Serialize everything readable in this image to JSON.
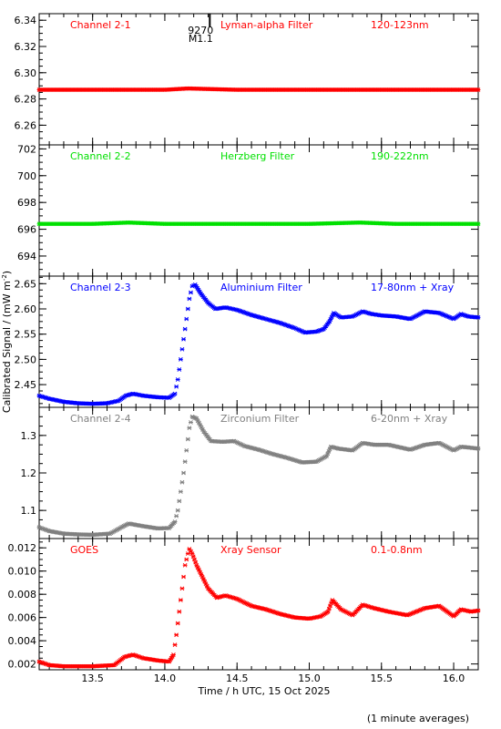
{
  "chart_data": {
    "type": "scatter",
    "ylabel": "Calibrated Signal / (mW m",
    "ylabel_sup": "-2",
    "ylabel_end": ")",
    "xlabel": "Time / h UTC, 15 Oct 2025",
    "footnote": "(1 minute averages)",
    "xlim": [
      13.13,
      16.17
    ],
    "x_ticks": [
      13.5,
      14.0,
      14.5,
      15.0,
      15.5,
      16.0
    ],
    "x_tick_labels": [
      "13.5",
      "14.0",
      "14.5",
      "15.0",
      "15.5",
      "16.0"
    ],
    "marker": {
      "label_top": "9270",
      "label_bottom": "M1.1",
      "x": 14.16
    },
    "panels": [
      {
        "channel": "Channel 2-1",
        "filter": "Lyman-alpha Filter",
        "band": "120-123nm",
        "color": "#ff0000",
        "ylim": [
          6.245,
          6.345
        ],
        "yticks": [
          6.26,
          6.28,
          6.3,
          6.32,
          6.34
        ],
        "ytick_labels": [
          "6.26",
          "6.28",
          "6.30",
          "6.32",
          "6.34"
        ],
        "series": [
          [
            13.13,
            6.287
          ],
          [
            13.5,
            6.287
          ],
          [
            14.0,
            6.287
          ],
          [
            14.16,
            6.288
          ],
          [
            14.5,
            6.287
          ],
          [
            15.0,
            6.287
          ],
          [
            15.5,
            6.287
          ],
          [
            16.17,
            6.287
          ]
        ]
      },
      {
        "channel": "Channel 2-2",
        "filter": "Herzberg Filter",
        "band": "190-222nm",
        "color": "#00e000",
        "ylim": [
          692.5,
          702.3
        ],
        "yticks": [
          694,
          696,
          698,
          700,
          702
        ],
        "ytick_labels": [
          "694",
          "696",
          "698",
          "700",
          "702"
        ],
        "series": [
          [
            13.13,
            696.4
          ],
          [
            13.5,
            696.4
          ],
          [
            13.75,
            696.5
          ],
          [
            14.0,
            696.4
          ],
          [
            14.5,
            696.4
          ],
          [
            15.0,
            696.4
          ],
          [
            15.35,
            696.5
          ],
          [
            15.6,
            696.4
          ],
          [
            16.17,
            696.4
          ]
        ]
      },
      {
        "channel": "Channel 2-3",
        "filter": "Aluminium Filter",
        "band": "17-80nm + Xray",
        "color": "#0000ff",
        "ylim": [
          2.405,
          2.665
        ],
        "yticks": [
          2.45,
          2.5,
          2.55,
          2.6,
          2.65
        ],
        "ytick_labels": [
          "2.45",
          "2.50",
          "2.55",
          "2.60",
          "2.65"
        ],
        "series": [
          [
            13.13,
            2.428
          ],
          [
            13.2,
            2.422
          ],
          [
            13.3,
            2.416
          ],
          [
            13.4,
            2.413
          ],
          [
            13.5,
            2.412
          ],
          [
            13.6,
            2.413
          ],
          [
            13.68,
            2.418
          ],
          [
            13.73,
            2.428
          ],
          [
            13.78,
            2.432
          ],
          [
            13.85,
            2.428
          ],
          [
            13.95,
            2.425
          ],
          [
            14.03,
            2.424
          ],
          [
            14.07,
            2.432
          ],
          [
            14.09,
            2.46
          ],
          [
            14.11,
            2.5
          ],
          [
            14.13,
            2.54
          ],
          [
            14.15,
            2.58
          ],
          [
            14.17,
            2.62
          ],
          [
            14.19,
            2.645
          ],
          [
            14.21,
            2.648
          ],
          [
            14.25,
            2.63
          ],
          [
            14.3,
            2.612
          ],
          [
            14.35,
            2.6
          ],
          [
            14.42,
            2.603
          ],
          [
            14.5,
            2.598
          ],
          [
            14.6,
            2.588
          ],
          [
            14.7,
            2.58
          ],
          [
            14.8,
            2.572
          ],
          [
            14.9,
            2.562
          ],
          [
            14.97,
            2.553
          ],
          [
            15.05,
            2.555
          ],
          [
            15.1,
            2.56
          ],
          [
            15.14,
            2.575
          ],
          [
            15.17,
            2.592
          ],
          [
            15.22,
            2.583
          ],
          [
            15.3,
            2.585
          ],
          [
            15.37,
            2.595
          ],
          [
            15.43,
            2.59
          ],
          [
            15.5,
            2.587
          ],
          [
            15.6,
            2.585
          ],
          [
            15.7,
            2.58
          ],
          [
            15.8,
            2.595
          ],
          [
            15.9,
            2.592
          ],
          [
            16.0,
            2.58
          ],
          [
            16.05,
            2.59
          ],
          [
            16.1,
            2.585
          ],
          [
            16.17,
            2.583
          ]
        ]
      },
      {
        "channel": "Channel 2-4",
        "filter": "Zirconium Filter",
        "band": "6-20nm + Xray",
        "color": "#808080",
        "ylim": [
          1.025,
          1.375
        ],
        "yticks": [
          1.1,
          1.2,
          1.3
        ],
        "ytick_labels": [
          "1.1",
          "1.2",
          "1.3"
        ],
        "series": [
          [
            13.13,
            1.055
          ],
          [
            13.2,
            1.045
          ],
          [
            13.3,
            1.038
          ],
          [
            13.4,
            1.036
          ],
          [
            13.5,
            1.035
          ],
          [
            13.62,
            1.038
          ],
          [
            13.7,
            1.055
          ],
          [
            13.75,
            1.065
          ],
          [
            13.85,
            1.058
          ],
          [
            13.95,
            1.052
          ],
          [
            14.03,
            1.053
          ],
          [
            14.07,
            1.07
          ],
          [
            14.09,
            1.1
          ],
          [
            14.11,
            1.15
          ],
          [
            14.13,
            1.2
          ],
          [
            14.15,
            1.26
          ],
          [
            14.17,
            1.32
          ],
          [
            14.19,
            1.35
          ],
          [
            14.22,
            1.345
          ],
          [
            14.27,
            1.31
          ],
          [
            14.32,
            1.285
          ],
          [
            14.4,
            1.283
          ],
          [
            14.48,
            1.285
          ],
          [
            14.55,
            1.272
          ],
          [
            14.65,
            1.262
          ],
          [
            14.75,
            1.25
          ],
          [
            14.85,
            1.24
          ],
          [
            14.95,
            1.228
          ],
          [
            15.05,
            1.23
          ],
          [
            15.12,
            1.245
          ],
          [
            15.15,
            1.27
          ],
          [
            15.2,
            1.265
          ],
          [
            15.3,
            1.26
          ],
          [
            15.37,
            1.28
          ],
          [
            15.45,
            1.275
          ],
          [
            15.55,
            1.275
          ],
          [
            15.7,
            1.262
          ],
          [
            15.8,
            1.275
          ],
          [
            15.9,
            1.28
          ],
          [
            16.0,
            1.26
          ],
          [
            16.05,
            1.27
          ],
          [
            16.1,
            1.268
          ],
          [
            16.17,
            1.265
          ]
        ]
      },
      {
        "channel": "GOES",
        "filter": "Xray Sensor",
        "band": "0.1-0.8nm",
        "color": "#ff0000",
        "ylim": [
          0.0015,
          0.0128
        ],
        "yticks": [
          0.002,
          0.004,
          0.006,
          0.008,
          0.01,
          0.012
        ],
        "ytick_labels": [
          "0.002",
          "0.004",
          "0.006",
          "0.008",
          "0.010",
          "0.012"
        ],
        "series": [
          [
            13.13,
            0.0022
          ],
          [
            13.2,
            0.0019
          ],
          [
            13.3,
            0.0018
          ],
          [
            13.4,
            0.0018
          ],
          [
            13.5,
            0.0018
          ],
          [
            13.65,
            0.0019
          ],
          [
            13.72,
            0.0026
          ],
          [
            13.78,
            0.0028
          ],
          [
            13.85,
            0.0025
          ],
          [
            13.95,
            0.0023
          ],
          [
            14.03,
            0.0022
          ],
          [
            14.06,
            0.0028
          ],
          [
            14.08,
            0.0045
          ],
          [
            14.1,
            0.0065
          ],
          [
            14.12,
            0.0085
          ],
          [
            14.14,
            0.0105
          ],
          [
            14.16,
            0.0115
          ],
          [
            14.17,
            0.0119
          ],
          [
            14.19,
            0.0115
          ],
          [
            14.22,
            0.0105
          ],
          [
            14.26,
            0.0095
          ],
          [
            14.3,
            0.0085
          ],
          [
            14.36,
            0.0077
          ],
          [
            14.42,
            0.0079
          ],
          [
            14.5,
            0.0076
          ],
          [
            14.6,
            0.007
          ],
          [
            14.7,
            0.0067
          ],
          [
            14.8,
            0.0063
          ],
          [
            14.9,
            0.006
          ],
          [
            15.0,
            0.0059
          ],
          [
            15.08,
            0.0061
          ],
          [
            15.13,
            0.0065
          ],
          [
            15.16,
            0.0075
          ],
          [
            15.22,
            0.0067
          ],
          [
            15.3,
            0.0062
          ],
          [
            15.37,
            0.0071
          ],
          [
            15.45,
            0.0068
          ],
          [
            15.55,
            0.0065
          ],
          [
            15.68,
            0.0062
          ],
          [
            15.8,
            0.0068
          ],
          [
            15.9,
            0.007
          ],
          [
            16.0,
            0.0061
          ],
          [
            16.05,
            0.0067
          ],
          [
            16.12,
            0.0065
          ],
          [
            16.17,
            0.0066
          ]
        ]
      }
    ]
  }
}
